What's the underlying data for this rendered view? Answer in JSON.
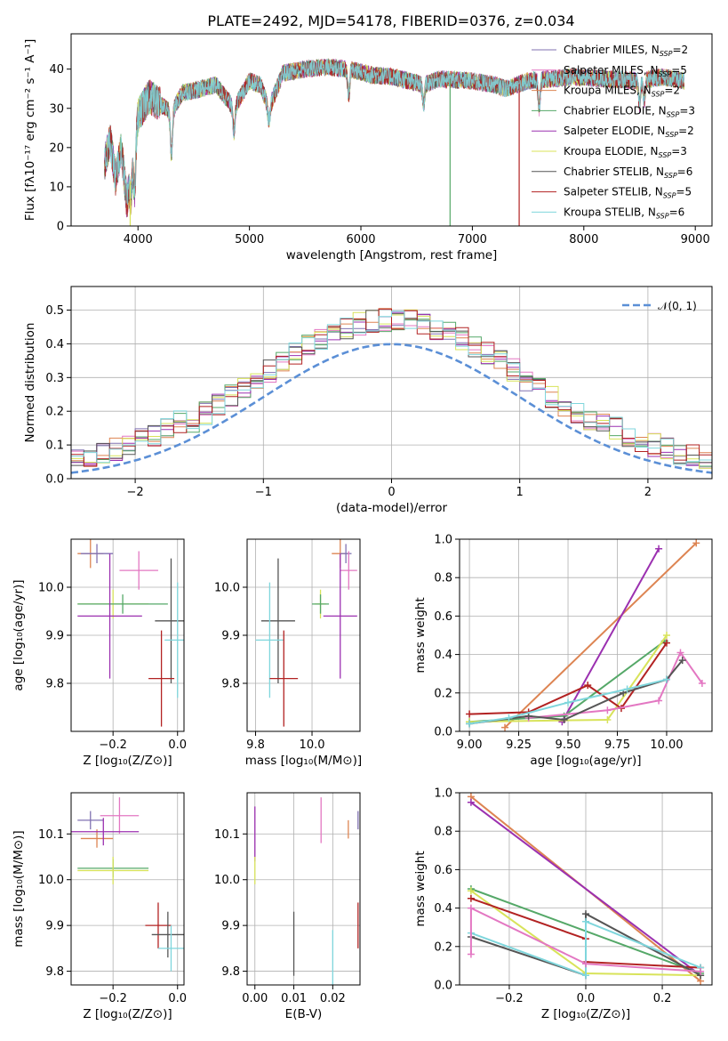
{
  "title": "PLATE=2492, MJD=54178, FIBERID=0376, z=0.034",
  "colors": {
    "chabrier_miles": "#8172b2",
    "salpeter_miles": "#e377c2",
    "kroupa_miles": "#dd8452",
    "chabrier_elodie": "#55a868",
    "salpeter_elodie": "#9b30b0",
    "kroupa_elodie": "#d8e35a",
    "chabrier_stelib": "#555555",
    "salpeter_stelib": "#b22222",
    "kroupa_stelib": "#7fd6dc",
    "normal": "#5b8fd6"
  },
  "chart_data": [
    {
      "id": "spectrum",
      "type": "line",
      "xlabel": "wavelength [Angstrom, rest frame]",
      "ylabel": "Flux [fλ10⁻¹⁷ erg cm⁻² s⁻¹ A⁻¹]",
      "xlim": [
        3400,
        9150
      ],
      "ylim": [
        0,
        49
      ],
      "xticks": [
        "4000",
        "5000",
        "6000",
        "7000",
        "8000",
        "9000"
      ],
      "yticks": [
        "0",
        "10",
        "20",
        "30",
        "40"
      ],
      "grid": false,
      "legend": "top-right",
      "x_range": [
        3700,
        8900
      ],
      "flux_profile": [
        [
          3700,
          16
        ],
        [
          3750,
          22
        ],
        [
          3800,
          12
        ],
        [
          3850,
          20
        ],
        [
          3900,
          6
        ],
        [
          3950,
          15
        ],
        [
          4000,
          28
        ],
        [
          4100,
          33
        ],
        [
          4200,
          31
        ],
        [
          4300,
          29
        ],
        [
          4400,
          34
        ],
        [
          4500,
          34.5
        ],
        [
          4700,
          36
        ],
        [
          4861,
          30
        ],
        [
          5000,
          37
        ],
        [
          5100,
          36
        ],
        [
          5175,
          30
        ],
        [
          5300,
          39
        ],
        [
          5500,
          40
        ],
        [
          5700,
          40.5
        ],
        [
          5900,
          40
        ],
        [
          6100,
          38.5
        ],
        [
          6300,
          38
        ],
        [
          6563,
          36
        ],
        [
          6700,
          37.5
        ],
        [
          7000,
          37
        ],
        [
          7200,
          36
        ],
        [
          7300,
          35
        ],
        [
          7500,
          37
        ],
        [
          7700,
          37.5
        ],
        [
          7900,
          38
        ],
        [
          8200,
          37.5
        ],
        [
          8500,
          37
        ],
        [
          8700,
          38
        ],
        [
          8900,
          37
        ]
      ],
      "dips": [
        [
          3934,
          7
        ],
        [
          3969,
          9
        ],
        [
          4300,
          18
        ],
        [
          4861,
          24
        ],
        [
          5175,
          27
        ],
        [
          5890,
          33
        ],
        [
          6563,
          31
        ],
        [
          7600,
          30
        ],
        [
          8500,
          31
        ],
        [
          8542,
          32
        ]
      ],
      "series": [
        {
          "key": "chabrier_miles",
          "legend": "Chabrier MILES, N",
          "nssp": "2"
        },
        {
          "key": "salpeter_miles",
          "legend": "Salpeter MILES, N",
          "nssp": "5"
        },
        {
          "key": "kroupa_miles",
          "legend": "Kroupa MILES, N",
          "nssp": "2"
        },
        {
          "key": "chabrier_elodie",
          "legend": "Chabrier ELODIE, N",
          "nssp": "3"
        },
        {
          "key": "salpeter_elodie",
          "legend": "Salpeter ELODIE, N",
          "nssp": "2"
        },
        {
          "key": "kroupa_elodie",
          "legend": "Kroupa ELODIE, N",
          "nssp": "3"
        },
        {
          "key": "chabrier_stelib",
          "legend": "Chabrier STELIB, N",
          "nssp": "6"
        },
        {
          "key": "salpeter_stelib",
          "legend": "Salpeter STELIB, N",
          "nssp": "5"
        },
        {
          "key": "kroupa_stelib",
          "legend": "Kroupa STELIB, N",
          "nssp": "6"
        }
      ],
      "nssp_sub": "SSP",
      "drops": [
        {
          "key": "chabrier_elodie",
          "x": 6800,
          "y": 0
        },
        {
          "key": "salpeter_stelib",
          "x": 7420,
          "y": 0
        },
        {
          "key": "kroupa_elodie",
          "x": 3930,
          "y": 0
        }
      ]
    },
    {
      "id": "residuals",
      "type": "histogram",
      "xlabel": "(data-model)/error",
      "ylabel": "Normed distribution",
      "xlim": [
        -2.5,
        2.5
      ],
      "ylim": [
        0,
        0.57
      ],
      "xticks": [
        -2,
        -1,
        0,
        1,
        2
      ],
      "xtick_labels": [
        "−2",
        "−1",
        "0",
        "1",
        "2"
      ],
      "yticks": [
        0.0,
        0.1,
        0.2,
        0.3,
        0.4,
        0.5
      ],
      "ytick_labels": [
        "0.0",
        "0.1",
        "0.2",
        "0.3",
        "0.4",
        "0.5"
      ],
      "grid": true,
      "bin_width": 0.1,
      "bins_from": -2.5,
      "legend_label": "𝒩(0, 1)",
      "legend": "top-right"
    },
    {
      "id": "age_vs_Z",
      "type": "errorbar",
      "xlabel": "Z [log₁₀(Z/Z⊙)]",
      "ylabel": "age  [log₁₀(age/yr)]",
      "xlim": [
        -0.33,
        0.02
      ],
      "ylim": [
        9.7,
        10.1
      ],
      "xticks": [
        -0.2,
        0.0
      ],
      "xtick_labels": [
        "−0.2",
        "0.0"
      ],
      "yticks": [
        9.8,
        9.9,
        10.0
      ],
      "ytick_labels": [
        "9.8",
        "9.9",
        "10.0"
      ],
      "grid": true,
      "points": [
        {
          "key": "kroupa_miles",
          "x": -0.27,
          "xerr": 0.04,
          "y": 10.07,
          "yerr": 0.03
        },
        {
          "key": "chabrier_miles",
          "x": -0.25,
          "xerr": 0.05,
          "y": 10.07,
          "yerr": 0.02
        },
        {
          "key": "salpeter_miles",
          "x": -0.12,
          "xerr": 0.06,
          "y": 10.035,
          "yerr": 0.04
        },
        {
          "key": "kroupa_elodie",
          "x": -0.2,
          "xerr": 0.11,
          "y": 9.965,
          "yerr": 0.03
        },
        {
          "key": "chabrier_elodie",
          "x": -0.17,
          "xerr": 0.14,
          "y": 9.965,
          "yerr": 0.02
        },
        {
          "key": "salpeter_elodie",
          "x": -0.21,
          "xerr": 0.1,
          "y": 9.94,
          "yerr": 0.13
        },
        {
          "key": "chabrier_stelib",
          "x": -0.02,
          "xerr": 0.05,
          "y": 9.93,
          "yerr": 0.13
        },
        {
          "key": "kroupa_stelib",
          "x": 0.0,
          "xerr": 0.04,
          "y": 9.89,
          "yerr": 0.12
        },
        {
          "key": "salpeter_stelib",
          "x": -0.05,
          "xerr": 0.04,
          "y": 9.81,
          "yerr": 0.1
        }
      ]
    },
    {
      "id": "age_vs_mass",
      "type": "errorbar",
      "xlabel": "mass [log₁₀(M/M⊙)]",
      "ylabel": "",
      "xlim": [
        9.77,
        10.17
      ],
      "ylim": [
        9.7,
        10.1
      ],
      "xticks": [
        9.8,
        10.0
      ],
      "xtick_labels": [
        "9.8",
        "10.0"
      ],
      "yticks": [
        9.8,
        9.9,
        10.0
      ],
      "ytick_labels": [
        "9.8",
        "9.9",
        "10.0"
      ],
      "grid": true,
      "points": [
        {
          "key": "kroupa_miles",
          "x": 10.1,
          "xerr": 0.03,
          "y": 10.07,
          "yerr": 0.03
        },
        {
          "key": "chabrier_miles",
          "x": 10.12,
          "xerr": 0.02,
          "y": 10.07,
          "yerr": 0.02
        },
        {
          "key": "salpeter_miles",
          "x": 10.13,
          "xerr": 0.03,
          "y": 10.035,
          "yerr": 0.04
        },
        {
          "key": "kroupa_elodie",
          "x": 10.03,
          "xerr": 0.02,
          "y": 9.965,
          "yerr": 0.03
        },
        {
          "key": "chabrier_elodie",
          "x": 10.03,
          "xerr": 0.03,
          "y": 9.965,
          "yerr": 0.02
        },
        {
          "key": "salpeter_elodie",
          "x": 10.1,
          "xerr": 0.06,
          "y": 9.94,
          "yerr": 0.13
        },
        {
          "key": "chabrier_stelib",
          "x": 9.88,
          "xerr": 0.06,
          "y": 9.93,
          "yerr": 0.13
        },
        {
          "key": "kroupa_stelib",
          "x": 9.85,
          "xerr": 0.05,
          "y": 9.89,
          "yerr": 0.12
        },
        {
          "key": "salpeter_stelib",
          "x": 9.9,
          "xerr": 0.05,
          "y": 9.81,
          "yerr": 0.1
        }
      ]
    },
    {
      "id": "weight_vs_age",
      "type": "line",
      "xlabel": "age  [log₁₀(age/yr)]",
      "ylabel": "mass weight",
      "xlim": [
        8.95,
        10.23
      ],
      "ylim": [
        0,
        1
      ],
      "xticks": [
        9.0,
        9.25,
        9.5,
        9.75,
        10.0
      ],
      "xtick_labels": [
        "9.00",
        "9.25",
        "9.50",
        "9.75",
        "10.00"
      ],
      "yticks": [
        0,
        0.2,
        0.4,
        0.6,
        0.8,
        1.0
      ],
      "ytick_labels": [
        "0.0",
        "0.2",
        "0.4",
        "0.6",
        "0.8",
        "1.0"
      ],
      "grid": true,
      "series": [
        {
          "key": "kroupa_miles",
          "x": [
            9.18,
            10.15
          ],
          "y": [
            0.02,
            0.98
          ]
        },
        {
          "key": "salpeter_elodie",
          "x": [
            9.47,
            9.96
          ],
          "y": [
            0.05,
            0.95
          ]
        },
        {
          "key": "chabrier_elodie",
          "x": [
            9.0,
            9.48,
            9.99
          ],
          "y": [
            0.05,
            0.08,
            0.47
          ]
        },
        {
          "key": "kroupa_elodie",
          "x": [
            9.0,
            9.7,
            10.0
          ],
          "y": [
            0.05,
            0.06,
            0.5
          ]
        },
        {
          "key": "salpeter_stelib",
          "x": [
            9.0,
            9.3,
            9.6,
            9.77,
            10.0
          ],
          "y": [
            0.09,
            0.1,
            0.24,
            0.12,
            0.46
          ]
        },
        {
          "key": "salpeter_miles",
          "x": [
            9.3,
            9.7,
            9.96,
            10.07,
            10.18
          ],
          "y": [
            0.07,
            0.11,
            0.16,
            0.41,
            0.25
          ]
        },
        {
          "key": "chabrier_stelib",
          "x": [
            9.0,
            9.3,
            9.48,
            9.78,
            10.0,
            10.08
          ],
          "y": [
            0.04,
            0.08,
            0.06,
            0.2,
            0.27,
            0.37
          ]
        },
        {
          "key": "kroupa_stelib",
          "x": [
            9.0,
            9.2,
            9.5,
            9.8,
            10.0
          ],
          "y": [
            0.04,
            0.07,
            0.15,
            0.22,
            0.27
          ]
        }
      ]
    },
    {
      "id": "mass_vs_Z",
      "type": "errorbar",
      "xlabel": "Z [log₁₀(Z/Z⊙)]",
      "ylabel": "mass [log₁₀(M/M⊙)]",
      "xlim": [
        -0.33,
        0.02
      ],
      "ylim": [
        9.77,
        10.19
      ],
      "xticks": [
        -0.2,
        0.0
      ],
      "xtick_labels": [
        "−0.2",
        "0.0"
      ],
      "yticks": [
        9.8,
        9.9,
        10.0,
        10.1
      ],
      "ytick_labels": [
        "9.8",
        "9.9",
        "10.0",
        "10.1"
      ],
      "grid": true,
      "points": [
        {
          "key": "chabrier_miles",
          "x": -0.27,
          "xerr": 0.04,
          "y": 10.13,
          "yerr": 0.02
        },
        {
          "key": "kroupa_miles",
          "x": -0.25,
          "xerr": 0.05,
          "y": 10.09,
          "yerr": 0.02
        },
        {
          "key": "salpeter_miles",
          "x": -0.18,
          "xerr": 0.06,
          "y": 10.14,
          "yerr": 0.04
        },
        {
          "key": "salpeter_elodie",
          "x": -0.23,
          "xerr": 0.11,
          "y": 10.105,
          "yerr": 0.03
        },
        {
          "key": "chabrier_elodie",
          "x": -0.2,
          "xerr": 0.11,
          "y": 10.025,
          "yerr": 0.02
        },
        {
          "key": "kroupa_elodie",
          "x": -0.2,
          "xerr": 0.11,
          "y": 10.02,
          "yerr": 0.03
        },
        {
          "key": "salpeter_stelib",
          "x": -0.06,
          "xerr": 0.04,
          "y": 9.9,
          "yerr": 0.05
        },
        {
          "key": "chabrier_stelib",
          "x": -0.03,
          "xerr": 0.05,
          "y": 9.88,
          "yerr": 0.05
        },
        {
          "key": "kroupa_stelib",
          "x": -0.02,
          "xerr": 0.04,
          "y": 9.85,
          "yerr": 0.05
        }
      ]
    },
    {
      "id": "mass_vs_ebv",
      "type": "errorbar",
      "xlabel": "E(B-V)",
      "ylabel": "",
      "xlim": [
        -0.002,
        0.027
      ],
      "ylim": [
        9.77,
        10.19
      ],
      "xticks": [
        0.0,
        0.01,
        0.02
      ],
      "xtick_labels": [
        "0.00",
        "0.01",
        "0.02"
      ],
      "yticks": [
        9.8,
        9.9,
        10.0,
        10.1
      ],
      "ytick_labels": [
        "9.8",
        "9.9",
        "10.0",
        "10.1"
      ],
      "grid": true,
      "points": [
        {
          "key": "salpeter_elodie",
          "x": 0.0,
          "xerr": 0.0,
          "y": 10.1,
          "yerr": 0.06
        },
        {
          "key": "kroupa_elodie",
          "x": 0.0,
          "xerr": 0.0,
          "y": 10.02,
          "yerr": 0.03
        },
        {
          "key": "chabrier_stelib",
          "x": 0.01,
          "xerr": 0.0,
          "y": 9.86,
          "yerr": 0.07
        },
        {
          "key": "salpeter_miles",
          "x": 0.017,
          "xerr": 0.0,
          "y": 10.13,
          "yerr": 0.05
        },
        {
          "key": "kroupa_stelib",
          "x": 0.02,
          "xerr": 0.0,
          "y": 9.83,
          "yerr": 0.06
        },
        {
          "key": "kroupa_miles",
          "x": 0.024,
          "xerr": 0.0,
          "y": 10.11,
          "yerr": 0.02
        },
        {
          "key": "chabrier_miles",
          "x": 0.0265,
          "xerr": 0.0,
          "y": 10.13,
          "yerr": 0.02
        },
        {
          "key": "salpeter_stelib",
          "x": 0.0265,
          "xerr": 0.0,
          "y": 9.9,
          "yerr": 0.05
        }
      ]
    },
    {
      "id": "weight_vs_Z",
      "type": "line",
      "xlabel": "Z [log₁₀(Z/Z⊙)]",
      "ylabel": "mass weight",
      "xlim": [
        -0.33,
        0.33
      ],
      "ylim": [
        0,
        1
      ],
      "xticks": [
        -0.2,
        0.0,
        0.2
      ],
      "xtick_labels": [
        "−0.2",
        "0.0",
        "0.2"
      ],
      "yticks": [
        0,
        0.2,
        0.4,
        0.6,
        0.8,
        1.0
      ],
      "ytick_labels": [
        "0.0",
        "0.2",
        "0.4",
        "0.6",
        "0.8",
        "1.0"
      ],
      "grid": true,
      "series": [
        {
          "key": "kroupa_miles",
          "x": [
            -0.3,
            0.3
          ],
          "y": [
            0.98,
            0.02
          ]
        },
        {
          "key": "salpeter_elodie",
          "x": [
            -0.3,
            0.3
          ],
          "y": [
            0.95,
            0.05
          ]
        },
        {
          "key": "chabrier_elodie",
          "x": [
            -0.3,
            0.3
          ],
          "y": [
            0.5,
            0.06
          ]
        },
        {
          "key": "kroupa_elodie",
          "x": [
            -0.3,
            0.0,
            0.3
          ],
          "y": [
            0.49,
            0.06,
            0.05
          ]
        },
        {
          "key": "salpeter_stelib",
          "x": [
            -0.3,
            0.0,
            0.0,
            0.3
          ],
          "y": [
            0.45,
            0.24,
            0.12,
            0.09
          ]
        },
        {
          "key": "chabrier_stelib",
          "x": [
            -0.3,
            0.0,
            0.0,
            0.3
          ],
          "y": [
            0.25,
            0.05,
            0.37,
            0.05
          ]
        },
        {
          "key": "kroupa_stelib",
          "x": [
            -0.3,
            0.0,
            0.0,
            0.3
          ],
          "y": [
            0.27,
            0.05,
            0.33,
            0.09
          ]
        },
        {
          "key": "salpeter_miles",
          "x": [
            -0.3,
            -0.3,
            0.0,
            0.3
          ],
          "y": [
            0.16,
            0.4,
            0.11,
            0.07
          ]
        }
      ]
    }
  ]
}
